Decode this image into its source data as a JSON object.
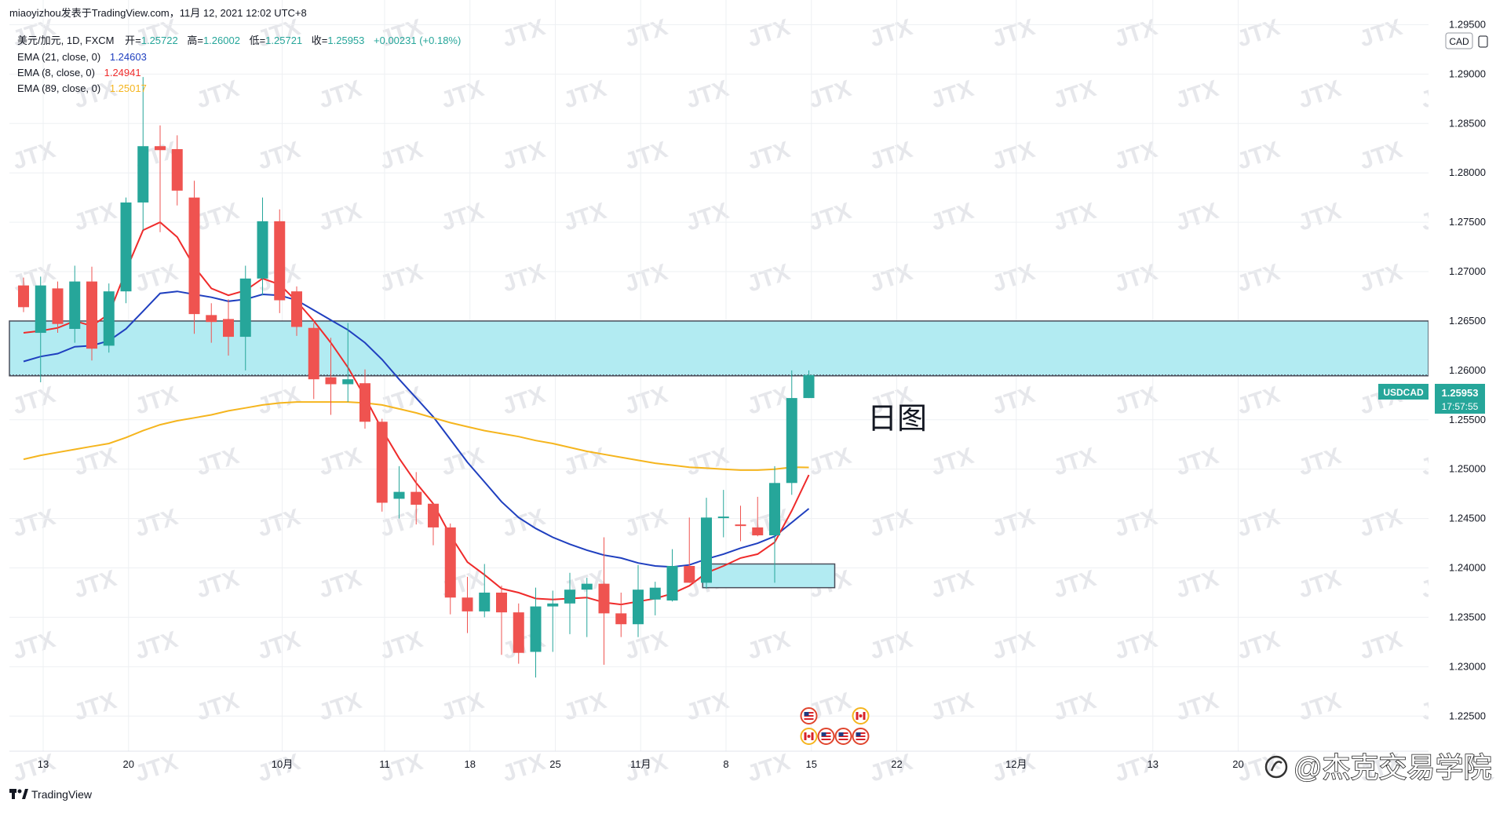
{
  "header": {
    "publisher": "miaoyizhou发表于TradingView.com，11月 12, 2021 12:02 UTC+8"
  },
  "legend": {
    "symbol": "美元/加元, 1D, FXCM",
    "ohlc": [
      {
        "label": "开=",
        "value": "1.25722"
      },
      {
        "label": "高=",
        "value": "1.26002"
      },
      {
        "label": "低=",
        "value": "1.25721"
      },
      {
        "label": "收=",
        "value": "1.25953"
      }
    ],
    "change": "+0.00231 (+0.18%)",
    "indicators": [
      {
        "label": "EMA (21, close, 0)",
        "value": "1.24603",
        "color": "#1f3fbf"
      },
      {
        "label": "EMA (8, close, 0)",
        "value": "1.24941",
        "color": "#ef2b2b"
      },
      {
        "label": "EMA (89, close, 0)",
        "value": "1.25017",
        "color": "#f5b51e"
      }
    ]
  },
  "price_axis": {
    "currency": "CAD",
    "symbol_tag": "USDCAD",
    "last_price": "1.25953",
    "countdown": "17:57:55",
    "ticks": [
      "1.29500",
      "1.29000",
      "1.28500",
      "1.28000",
      "1.27500",
      "1.27000",
      "1.26500",
      "1.26000",
      "1.25500",
      "1.25000",
      "1.24500",
      "1.24000",
      "1.23500",
      "1.23000",
      "1.22500"
    ]
  },
  "annotation": {
    "text": "日图"
  },
  "watermark": {
    "text": "JTX"
  },
  "footer": {
    "brand": "TradingView",
    "channel": "@杰克交易学院"
  },
  "colors": {
    "up": "#26a69a",
    "down": "#ef5350",
    "zone_fill": "#b2ebf2",
    "zone_border": "#4a4f5c",
    "tag_bg": "#26a69a",
    "grid": "#eef0f3"
  },
  "chart_data": {
    "type": "candlestick",
    "instrument": "USDCAD",
    "timeframe": "1D",
    "ylim": [
      1.222,
      1.2975
    ],
    "x_axis_labels": [
      {
        "label": "13",
        "day_index": 0
      },
      {
        "label": "20",
        "day_index": 5
      },
      {
        "label": "10月",
        "day_index": 14
      },
      {
        "label": "11",
        "day_index": 20
      },
      {
        "label": "18",
        "day_index": 25
      },
      {
        "label": "25",
        "day_index": 30
      },
      {
        "label": "11月",
        "day_index": 35
      },
      {
        "label": "8",
        "day_index": 40
      },
      {
        "label": "15",
        "day_index": 45
      },
      {
        "label": "22",
        "day_index": 50
      },
      {
        "label": "12月",
        "day_index": 57
      },
      {
        "label": "13",
        "day_index": 65
      },
      {
        "label": "20",
        "day_index": 70
      }
    ],
    "candles": [
      {
        "date": "2021-09-13",
        "o": 1.2686,
        "h": 1.2694,
        "l": 1.2659,
        "c": 1.2664
      },
      {
        "date": "2021-09-14",
        "o": 1.2638,
        "h": 1.2695,
        "l": 1.2588,
        "c": 1.2686
      },
      {
        "date": "2021-09-15",
        "o": 1.2683,
        "h": 1.269,
        "l": 1.2638,
        "c": 1.2647
      },
      {
        "date": "2021-09-16",
        "o": 1.2642,
        "h": 1.2706,
        "l": 1.2628,
        "c": 1.269
      },
      {
        "date": "2021-09-17",
        "o": 1.269,
        "h": 1.2705,
        "l": 1.261,
        "c": 1.2622
      },
      {
        "date": "2021-09-20",
        "o": 1.2625,
        "h": 1.2688,
        "l": 1.2618,
        "c": 1.268
      },
      {
        "date": "2021-09-21",
        "o": 1.268,
        "h": 1.2775,
        "l": 1.2668,
        "c": 1.277
      },
      {
        "date": "2021-09-22",
        "o": 1.277,
        "h": 1.2897,
        "l": 1.2742,
        "c": 1.2827
      },
      {
        "date": "2021-09-23",
        "o": 1.2827,
        "h": 1.2848,
        "l": 1.274,
        "c": 1.2823
      },
      {
        "date": "2021-09-24",
        "o": 1.2824,
        "h": 1.2838,
        "l": 1.2767,
        "c": 1.2782
      },
      {
        "date": "2021-09-27",
        "o": 1.2775,
        "h": 1.2792,
        "l": 1.2637,
        "c": 1.2657
      },
      {
        "date": "2021-09-28",
        "o": 1.2656,
        "h": 1.2668,
        "l": 1.2628,
        "c": 1.2649
      },
      {
        "date": "2021-09-29",
        "o": 1.2652,
        "h": 1.2672,
        "l": 1.2615,
        "c": 1.2634
      },
      {
        "date": "2021-09-30",
        "o": 1.2634,
        "h": 1.2706,
        "l": 1.26,
        "c": 1.2693
      },
      {
        "date": "2021-10-01",
        "o": 1.2693,
        "h": 1.2775,
        "l": 1.2676,
        "c": 1.2751
      },
      {
        "date": "2021-10-04",
        "o": 1.2751,
        "h": 1.2763,
        "l": 1.2658,
        "c": 1.2671
      },
      {
        "date": "2021-10-05",
        "o": 1.268,
        "h": 1.2685,
        "l": 1.2635,
        "c": 1.2644
      },
      {
        "date": "2021-10-06",
        "o": 1.2643,
        "h": 1.2648,
        "l": 1.2571,
        "c": 1.2591
      },
      {
        "date": "2021-10-07",
        "o": 1.2593,
        "h": 1.2633,
        "l": 1.2555,
        "c": 1.2586
      },
      {
        "date": "2021-10-08",
        "o": 1.2586,
        "h": 1.2648,
        "l": 1.2568,
        "c": 1.2591
      },
      {
        "date": "2021-10-11",
        "o": 1.2587,
        "h": 1.2601,
        "l": 1.2541,
        "c": 1.2548
      },
      {
        "date": "2021-10-12",
        "o": 1.2548,
        "h": 1.2551,
        "l": 1.2457,
        "c": 1.2466
      },
      {
        "date": "2021-10-13",
        "o": 1.247,
        "h": 1.2503,
        "l": 1.245,
        "c": 1.2477
      },
      {
        "date": "2021-10-14",
        "o": 1.2477,
        "h": 1.2497,
        "l": 1.2444,
        "c": 1.2464
      },
      {
        "date": "2021-10-15",
        "o": 1.2465,
        "h": 1.2466,
        "l": 1.2423,
        "c": 1.2441
      },
      {
        "date": "2021-10-18",
        "o": 1.2441,
        "h": 1.2445,
        "l": 1.2353,
        "c": 1.237
      },
      {
        "date": "2021-10-19",
        "o": 1.237,
        "h": 1.2391,
        "l": 1.2334,
        "c": 1.2356
      },
      {
        "date": "2021-10-20",
        "o": 1.2356,
        "h": 1.2404,
        "l": 1.235,
        "c": 1.2375
      },
      {
        "date": "2021-10-21",
        "o": 1.2375,
        "h": 1.2382,
        "l": 1.2312,
        "c": 1.2355
      },
      {
        "date": "2021-10-22",
        "o": 1.2355,
        "h": 1.2364,
        "l": 1.2303,
        "c": 1.2314
      },
      {
        "date": "2021-10-25",
        "o": 1.2315,
        "h": 1.238,
        "l": 1.2289,
        "c": 1.2361
      },
      {
        "date": "2021-10-26",
        "o": 1.2361,
        "h": 1.2377,
        "l": 1.2315,
        "c": 1.2364
      },
      {
        "date": "2021-10-27",
        "o": 1.2364,
        "h": 1.2395,
        "l": 1.2333,
        "c": 1.2378
      },
      {
        "date": "2021-10-28",
        "o": 1.2378,
        "h": 1.239,
        "l": 1.233,
        "c": 1.2384
      },
      {
        "date": "2021-10-29",
        "o": 1.2384,
        "h": 1.2431,
        "l": 1.2302,
        "c": 1.2354
      },
      {
        "date": "2021-11-01",
        "o": 1.2354,
        "h": 1.2375,
        "l": 1.233,
        "c": 1.2343
      },
      {
        "date": "2021-11-02",
        "o": 1.2343,
        "h": 1.2403,
        "l": 1.233,
        "c": 1.2378
      },
      {
        "date": "2021-11-03",
        "o": 1.2368,
        "h": 1.2386,
        "l": 1.2352,
        "c": 1.238
      },
      {
        "date": "2021-11-04",
        "o": 1.2367,
        "h": 1.2419,
        "l": 1.2366,
        "c": 1.2402
      },
      {
        "date": "2021-11-05",
        "o": 1.2402,
        "h": 1.2451,
        "l": 1.2385,
        "c": 1.2385
      },
      {
        "date": "2021-11-08",
        "o": 1.2385,
        "h": 1.2471,
        "l": 1.2379,
        "c": 1.2451
      },
      {
        "date": "2021-11-09",
        "o": 1.2451,
        "h": 1.2479,
        "l": 1.2431,
        "c": 1.2452
      },
      {
        "date": "2021-11-10",
        "o": 1.2444,
        "h": 1.2463,
        "l": 1.2427,
        "c": 1.2443
      },
      {
        "date": "2021-11-11",
        "o": 1.2441,
        "h": 1.2472,
        "l": 1.2432,
        "c": 1.2433
      },
      {
        "date": "2021-11-12",
        "o": 1.2433,
        "h": 1.2503,
        "l": 1.2385,
        "c": 1.2486
      },
      {
        "date": "2021-11-15",
        "o": 1.2486,
        "h": 1.26,
        "l": 1.2474,
        "c": 1.2572
      },
      {
        "date": "2021-11-16",
        "o": 1.2572,
        "h": 1.26,
        "l": 1.2572,
        "c": 1.25953
      }
    ],
    "ema": [
      {
        "name": "EMA (21, close, 0)",
        "color": "#1f3fbf",
        "values": [
          1.2609,
          1.2614,
          1.2617,
          1.2624,
          1.2625,
          1.263,
          1.2642,
          1.266,
          1.2678,
          1.268,
          1.2677,
          1.2674,
          1.267,
          1.2672,
          1.2677,
          1.2676,
          1.2671,
          1.2661,
          1.2651,
          1.2641,
          1.2628,
          1.2611,
          1.2591,
          1.2572,
          1.2553,
          1.253,
          1.2507,
          1.2487,
          1.2467,
          1.2451,
          1.244,
          1.2431,
          1.2424,
          1.2418,
          1.2413,
          1.241,
          1.2405,
          1.2402,
          1.2401,
          1.2403,
          1.2409,
          1.2414,
          1.242,
          1.2425,
          1.2432,
          1.2446,
          1.246
        ]
      },
      {
        "name": "EMA (8, close, 0)",
        "color": "#ef2b2b",
        "values": [
          1.2638,
          1.264,
          1.2643,
          1.265,
          1.2645,
          1.2657,
          1.2701,
          1.2742,
          1.275,
          1.2735,
          1.2705,
          1.2683,
          1.2676,
          1.2681,
          1.2693,
          1.2687,
          1.267,
          1.265,
          1.2628,
          1.2603,
          1.2573,
          1.254,
          1.2511,
          1.2486,
          1.2465,
          1.2433,
          1.2406,
          1.2393,
          1.2379,
          1.2375,
          1.2369,
          1.2368,
          1.2369,
          1.237,
          1.2365,
          1.2363,
          1.2366,
          1.2369,
          1.2374,
          1.2382,
          1.2395,
          1.2402,
          1.241,
          1.2414,
          1.2426,
          1.2458,
          1.24941
        ]
      },
      {
        "name": "EMA (89, close, 0)",
        "color": "#f5b51e",
        "values": [
          1.251,
          1.2514,
          1.2517,
          1.252,
          1.2523,
          1.2526,
          1.2532,
          1.2539,
          1.2545,
          1.2549,
          1.2552,
          1.2555,
          1.2559,
          1.2562,
          1.2565,
          1.2567,
          1.2568,
          1.2568,
          1.2568,
          1.2568,
          1.2567,
          1.2565,
          1.2561,
          1.2557,
          1.2552,
          1.2547,
          1.2543,
          1.2539,
          1.2536,
          1.2533,
          1.2529,
          1.2526,
          1.2522,
          1.2518,
          1.2515,
          1.2512,
          1.2509,
          1.2506,
          1.2504,
          1.2502,
          1.2501,
          1.25,
          1.2499,
          1.2499,
          1.25,
          1.2502,
          1.25017
        ]
      }
    ],
    "zones": [
      {
        "name": "resistance",
        "from": 1.25945,
        "to": 1.265
      },
      {
        "name": "support",
        "from": 1.238,
        "to": 1.2404,
        "start_date": "2021-11-05",
        "end_date": "2021-11-16"
      }
    ],
    "events": [
      {
        "date": "2021-11-16",
        "flags": [
          "USD"
        ]
      },
      {
        "date": "2021-11-19",
        "flags": [
          "CAD"
        ]
      },
      {
        "date": "2021-11-16",
        "flags": [
          "CAD",
          "USD",
          "USD",
          "USD"
        ],
        "row": 2
      }
    ]
  }
}
